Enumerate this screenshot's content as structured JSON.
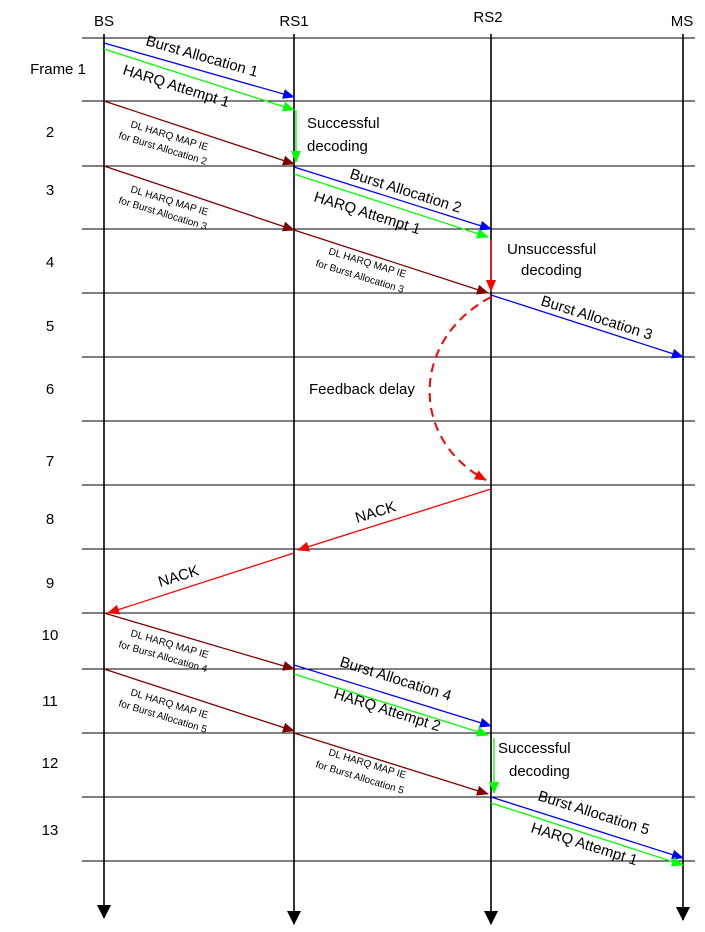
{
  "nodes": [
    "BS",
    "RS1",
    "RS2",
    "MS"
  ],
  "frames": [
    "Frame 1",
    "2",
    "3",
    "4",
    "5",
    "6",
    "7",
    "8",
    "9",
    "10",
    "11",
    "12",
    "13"
  ],
  "messages": {
    "burst1": "Burst Allocation 1",
    "harq1": "HARQ Attempt 1",
    "map2_l1": "DL HARQ MAP IE",
    "map2_l2": "for Burst Allocation 2",
    "burst2": "Burst Allocation 2",
    "harq2": "HARQ Attempt 1",
    "map3a_l1": "DL HARQ MAP IE",
    "map3a_l2": "for Burst Allocation 3",
    "map3b_l1": "DL HARQ MAP IE",
    "map3b_l2": "for Burst Allocation 3",
    "burst3": "Burst Allocation 3",
    "nack1": "NACK",
    "nack2": "NACK",
    "map4_l1": "DL HARQ MAP IE",
    "map4_l2": "for Burst Allocation 4",
    "burst4": "Burst Allocation 4",
    "harq4": "HARQ Attempt 2",
    "map5a_l1": "DL HARQ MAP IE",
    "map5a_l2": "for Burst Allocation 5",
    "map5b_l1": "DL HARQ MAP IE",
    "map5b_l2": "for Burst Allocation 5",
    "burst5": "Burst Allocation 5",
    "harq5": "HARQ Attempt 1"
  },
  "notes": {
    "success1_l1": "Successful",
    "success1_l2": "decoding",
    "unsuccess_l1": "Unsuccessful",
    "unsuccess_l2": "decoding",
    "feedback": "Feedback delay",
    "success2_l1": "Successful",
    "success2_l2": "decoding"
  },
  "colors": {
    "burst": "#0000ff",
    "harq": "#00ff00",
    "map": "#800000",
    "nack": "#ff0000",
    "lines": "#000000"
  }
}
